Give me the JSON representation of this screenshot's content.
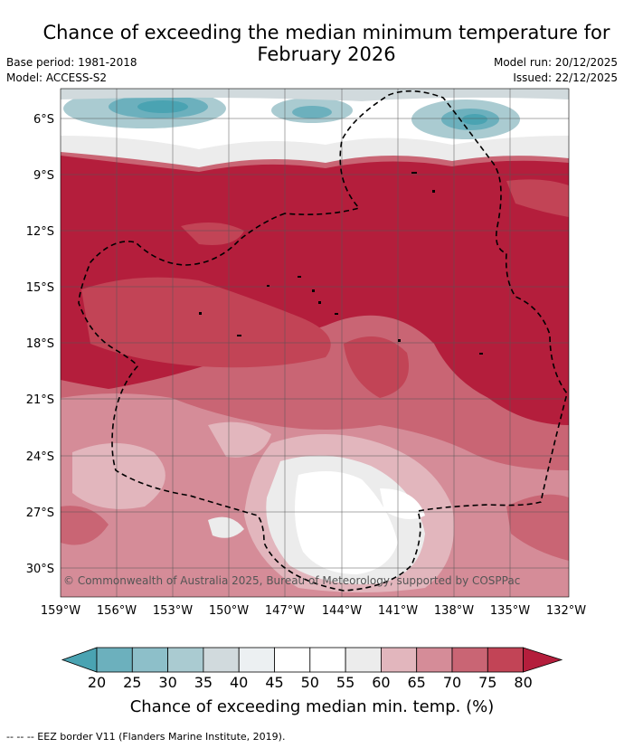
{
  "title_line1": "Chance of exceeding the median minimum temperature for",
  "title_line2": "February 2026",
  "base_period": "Base period: 1981-2018",
  "model": "Model: ACCESS-S2",
  "model_run": "Model run: 20/12/2025",
  "issued": "Issued: 22/12/2025",
  "copyright": "© Commonwealth of Australia 2025, Bureau of Meteorology, supported by COSPPac",
  "lat_labels": [
    "6°S",
    "9°S",
    "12°S",
    "15°S",
    "18°S",
    "21°S",
    "24°S",
    "27°S",
    "30°S"
  ],
  "lon_labels": [
    "159°W",
    "156°W",
    "153°W",
    "150°W",
    "147°W",
    "144°W",
    "141°W",
    "138°W",
    "135°W",
    "132°W"
  ],
  "colorbar": {
    "ticks": [
      "20",
      "25",
      "30",
      "35",
      "40",
      "45",
      "50",
      "55",
      "60",
      "65",
      "70",
      "75",
      "80"
    ],
    "colors": [
      "#4aa3b2",
      "#6cb0bd",
      "#8dbfc9",
      "#aacbd1",
      "#d1dadd",
      "#ecf0f2",
      "#ffffff",
      "#ffffff",
      "#ececec",
      "#e2b6bd",
      "#d58c98",
      "#c96574",
      "#c24456",
      "#b41e3c"
    ],
    "label": "Chance of exceeding median min. temp. (%)"
  },
  "legend_footer": "--  --  -- EEZ border V11 (Flanders Marine Institute, 2019)."
}
